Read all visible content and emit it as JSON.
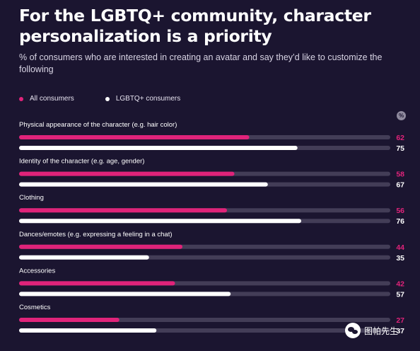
{
  "chart_data": {
    "type": "bar",
    "orientation": "horizontal",
    "title": "For the LGBTQ+ community, character personalization is a priority",
    "subtitle": "% of consumers who are interested in creating an avatar and say they’d like to customize the following",
    "unit_label": "%",
    "xlim": [
      0,
      100
    ],
    "grid": false,
    "legend_position": "top-left",
    "categories": [
      "Physical appearance of the character (e.g. hair color)",
      "Identity of the character (e.g. age, gender)",
      "Clothing",
      "Dances/emotes (e.g. expressing a feeling in a chat)",
      "Accessories",
      "Cosmetics"
    ],
    "series": [
      {
        "name": "All consumers",
        "color": "#e0237a",
        "values": [
          62,
          58,
          56,
          44,
          42,
          27
        ]
      },
      {
        "name": "LGBTQ+ consumers",
        "color": "#ffffff",
        "values": [
          75,
          67,
          76,
          35,
          57,
          37
        ]
      }
    ],
    "track_color": "#433d57"
  },
  "legend": {
    "items": [
      {
        "label": "All consumers",
        "color": "#e0237a"
      },
      {
        "label": "LGBTQ+ consumers",
        "color": "#ffffff"
      }
    ]
  },
  "watermark": {
    "text": "图帕先生",
    "icon": "wechat-icon"
  }
}
